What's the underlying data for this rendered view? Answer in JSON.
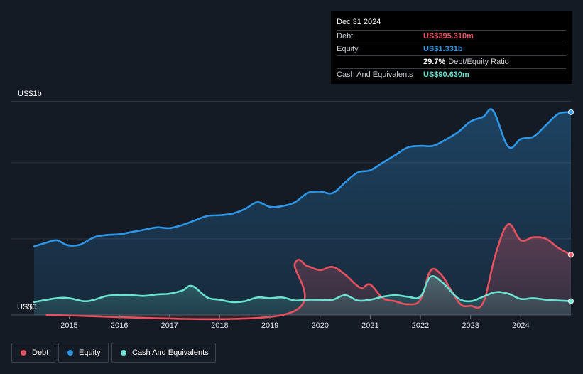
{
  "colors": {
    "debt": "#e5515e",
    "equity": "#2e96e6",
    "cash": "#6ae3d2",
    "background": "#151b24",
    "grid": "#2c323b"
  },
  "tooltip": {
    "date": "Dec 31 2024",
    "debt_label": "Debt",
    "debt_value": "US$395.310m",
    "equity_label": "Equity",
    "equity_value": "US$1.331b",
    "ratio_value": "29.7%",
    "ratio_label": "Debt/Equity Ratio",
    "cash_label": "Cash And Equivalents",
    "cash_value": "US$90.630m"
  },
  "legend": {
    "debt": "Debt",
    "equity": "Equity",
    "cash": "Cash And Equivalents"
  },
  "chart_data": {
    "type": "area",
    "y_top_label": "US$1b",
    "y_bottom_label": "US$0",
    "ylim": [
      0,
      1.4
    ],
    "xlim": [
      2014.3,
      2025.0
    ],
    "x_ticks": [
      2015,
      2016,
      2017,
      2018,
      2019,
      2020,
      2021,
      2022,
      2023,
      2024
    ],
    "legend_position": "bottom-left",
    "grid": true,
    "series": [
      {
        "name": "Equity",
        "key": "equity",
        "points": [
          [
            2014.3,
            0.45
          ],
          [
            2014.5,
            0.47
          ],
          [
            2014.75,
            0.49
          ],
          [
            2014.95,
            0.46
          ],
          [
            2015.2,
            0.46
          ],
          [
            2015.5,
            0.51
          ],
          [
            2015.75,
            0.525
          ],
          [
            2016.0,
            0.53
          ],
          [
            2016.25,
            0.545
          ],
          [
            2016.5,
            0.56
          ],
          [
            2016.75,
            0.575
          ],
          [
            2017.0,
            0.57
          ],
          [
            2017.25,
            0.59
          ],
          [
            2017.5,
            0.62
          ],
          [
            2017.75,
            0.65
          ],
          [
            2018.0,
            0.655
          ],
          [
            2018.25,
            0.665
          ],
          [
            2018.5,
            0.695
          ],
          [
            2018.75,
            0.74
          ],
          [
            2019.0,
            0.71
          ],
          [
            2019.25,
            0.715
          ],
          [
            2019.5,
            0.74
          ],
          [
            2019.75,
            0.8
          ],
          [
            2020.0,
            0.81
          ],
          [
            2020.25,
            0.8
          ],
          [
            2020.5,
            0.87
          ],
          [
            2020.75,
            0.935
          ],
          [
            2021.0,
            0.95
          ],
          [
            2021.25,
            1.0
          ],
          [
            2021.5,
            1.05
          ],
          [
            2021.75,
            1.1
          ],
          [
            2022.0,
            1.11
          ],
          [
            2022.25,
            1.11
          ],
          [
            2022.5,
            1.15
          ],
          [
            2022.75,
            1.2
          ],
          [
            2023.0,
            1.27
          ],
          [
            2023.25,
            1.3
          ],
          [
            2023.45,
            1.34
          ],
          [
            2023.75,
            1.105
          ],
          [
            2024.0,
            1.155
          ],
          [
            2024.25,
            1.17
          ],
          [
            2024.5,
            1.245
          ],
          [
            2024.75,
            1.32
          ],
          [
            2025.0,
            1.331
          ]
        ]
      },
      {
        "name": "Debt",
        "key": "debt",
        "points": [
          [
            2014.55,
            0.0
          ],
          [
            2019.25,
            0.0
          ],
          [
            2019.5,
            0.34
          ],
          [
            2019.75,
            0.32
          ],
          [
            2020.0,
            0.295
          ],
          [
            2020.25,
            0.315
          ],
          [
            2020.5,
            0.265
          ],
          [
            2020.8,
            0.18
          ],
          [
            2021.0,
            0.2
          ],
          [
            2021.25,
            0.11
          ],
          [
            2021.5,
            0.09
          ],
          [
            2021.75,
            0.07
          ],
          [
            2022.0,
            0.1
          ],
          [
            2022.2,
            0.29
          ],
          [
            2022.4,
            0.27
          ],
          [
            2022.6,
            0.17
          ],
          [
            2022.8,
            0.07
          ],
          [
            2023.0,
            0.06
          ],
          [
            2023.25,
            0.08
          ],
          [
            2023.5,
            0.4
          ],
          [
            2023.75,
            0.595
          ],
          [
            2024.0,
            0.49
          ],
          [
            2024.25,
            0.51
          ],
          [
            2024.5,
            0.5
          ],
          [
            2024.75,
            0.44
          ],
          [
            2025.0,
            0.395
          ]
        ]
      },
      {
        "name": "Cash And Equivalents",
        "key": "cash",
        "points": [
          [
            2014.3,
            0.085
          ],
          [
            2014.75,
            0.11
          ],
          [
            2015.0,
            0.11
          ],
          [
            2015.3,
            0.09
          ],
          [
            2015.5,
            0.1
          ],
          [
            2015.75,
            0.125
          ],
          [
            2016.0,
            0.13
          ],
          [
            2016.25,
            0.13
          ],
          [
            2016.5,
            0.125
          ],
          [
            2016.75,
            0.135
          ],
          [
            2017.0,
            0.14
          ],
          [
            2017.25,
            0.16
          ],
          [
            2017.45,
            0.19
          ],
          [
            2017.75,
            0.115
          ],
          [
            2018.0,
            0.1
          ],
          [
            2018.25,
            0.085
          ],
          [
            2018.5,
            0.09
          ],
          [
            2018.75,
            0.115
          ],
          [
            2019.0,
            0.11
          ],
          [
            2019.25,
            0.115
          ],
          [
            2019.5,
            0.095
          ],
          [
            2019.75,
            0.1
          ],
          [
            2020.0,
            0.1
          ],
          [
            2020.25,
            0.1
          ],
          [
            2020.5,
            0.13
          ],
          [
            2020.75,
            0.095
          ],
          [
            2021.0,
            0.1
          ],
          [
            2021.25,
            0.12
          ],
          [
            2021.5,
            0.13
          ],
          [
            2021.75,
            0.12
          ],
          [
            2022.0,
            0.12
          ],
          [
            2022.2,
            0.25
          ],
          [
            2022.45,
            0.21
          ],
          [
            2022.75,
            0.11
          ],
          [
            2023.0,
            0.09
          ],
          [
            2023.25,
            0.12
          ],
          [
            2023.5,
            0.15
          ],
          [
            2023.75,
            0.14
          ],
          [
            2024.0,
            0.105
          ],
          [
            2024.25,
            0.11
          ],
          [
            2024.5,
            0.1
          ],
          [
            2024.75,
            0.095
          ],
          [
            2025.0,
            0.0906
          ]
        ]
      }
    ]
  }
}
